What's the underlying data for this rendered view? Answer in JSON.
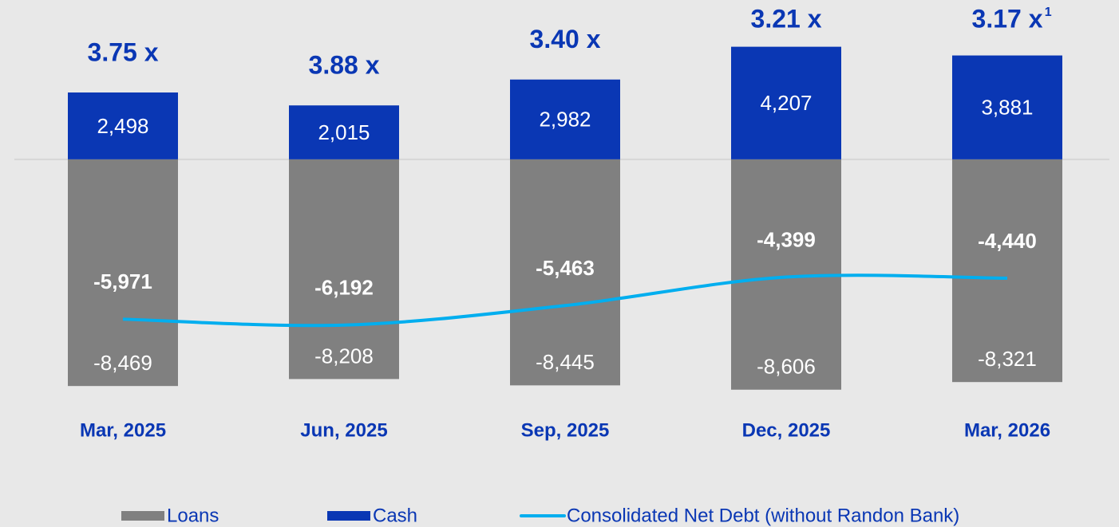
{
  "chart_data": {
    "type": "bar",
    "stacked": true,
    "categories": [
      "Mar, 2025",
      "Jun, 2025",
      "Sep, 2025",
      "Dec, 2025",
      "Mar, 2026"
    ],
    "ylim": [
      -9000,
      5000
    ],
    "series": [
      {
        "name": "Loans",
        "color": "#808080",
        "values": [
          -8469,
          -8208,
          -8445,
          -8606,
          -8321
        ],
        "value_labels": [
          "-8,469",
          "-8,208",
          "-8,445",
          "-8,606",
          "-8,321"
        ]
      },
      {
        "name": "Cash",
        "color": "#0a37b4",
        "values": [
          2498,
          2015,
          2982,
          4207,
          3881
        ],
        "value_labels": [
          "2,498",
          "2,015",
          "2,982",
          "4,207",
          "3,881"
        ]
      },
      {
        "name": "Consolidated Net Debt (without Randon Bank)",
        "type": "line",
        "color": "#00aeef",
        "values": [
          -5971,
          -6192,
          -5463,
          -4399,
          -4440
        ],
        "value_labels": [
          "-5,971",
          "-6,192",
          "-5,463",
          "-4,399",
          "-4,440"
        ]
      }
    ],
    "annotations": [
      "3.75 x",
      "3.88 x",
      "3.40 x",
      "3.21 x",
      "3.17 x"
    ],
    "annotation_footnote": "1",
    "legend": "bottom"
  }
}
